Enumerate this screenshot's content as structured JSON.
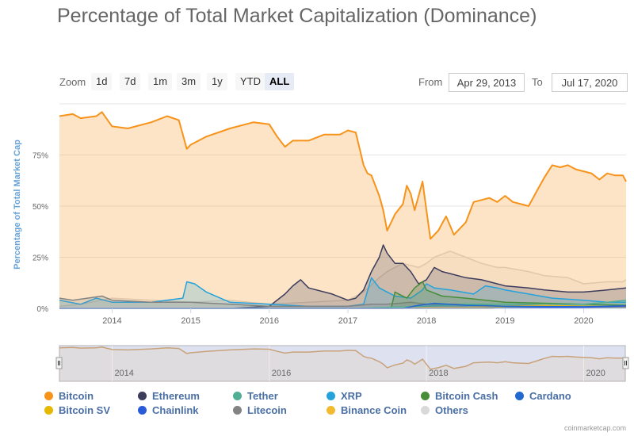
{
  "title": "Percentage of Total Market Capitalization (Dominance)",
  "zoom": {
    "label": "Zoom",
    "buttons": [
      "1d",
      "7d",
      "1m",
      "3m",
      "1y",
      "YTD",
      "ALL"
    ],
    "active": "ALL"
  },
  "range": {
    "from_label": "From",
    "from_value": "Apr 29, 2013",
    "to_label": "To",
    "to_value": "Jul 17, 2020"
  },
  "credits": "coinmarketcap.com",
  "chart_data": {
    "type": "area",
    "title": "Percentage of Total Market Capitalization (Dominance)",
    "ylabel": "Percentage of Total Market Cap",
    "xlabel": "",
    "ylim": [
      0,
      100
    ],
    "yticks": [
      0,
      25,
      50,
      75
    ],
    "ytick_labels": [
      "0%",
      "25%",
      "50%",
      "75%"
    ],
    "xlim": [
      2013.33,
      2020.54
    ],
    "xticks": [
      2014,
      2015,
      2016,
      2017,
      2018,
      2019,
      2020
    ],
    "xtick_labels": [
      "2014",
      "2015",
      "2016",
      "2017",
      "2018",
      "2019",
      "2020"
    ],
    "navigator_ticks": [
      2014,
      2016,
      2018,
      2020
    ],
    "navigator_tick_labels": [
      "2014",
      "2016",
      "2018",
      "2020"
    ],
    "legend_position": "bottom",
    "series": [
      {
        "name": "Bitcoin",
        "color": "#f7931a",
        "x": [
          2013.33,
          2013.5,
          2013.6,
          2013.8,
          2013.87,
          2014.0,
          2014.2,
          2014.5,
          2014.7,
          2014.85,
          2014.95,
          2015.0,
          2015.2,
          2015.5,
          2015.8,
          2016.0,
          2016.1,
          2016.2,
          2016.3,
          2016.5,
          2016.7,
          2016.9,
          2017.0,
          2017.1,
          2017.2,
          2017.25,
          2017.3,
          2017.4,
          2017.45,
          2017.5,
          2017.6,
          2017.7,
          2017.75,
          2017.8,
          2017.85,
          2017.9,
          2017.95,
          2018.0,
          2018.05,
          2018.15,
          2018.25,
          2018.35,
          2018.5,
          2018.6,
          2018.7,
          2018.8,
          2018.9,
          2019.0,
          2019.1,
          2019.2,
          2019.3,
          2019.4,
          2019.5,
          2019.6,
          2019.7,
          2019.8,
          2019.9,
          2020.0,
          2020.1,
          2020.2,
          2020.3,
          2020.4,
          2020.5,
          2020.54
        ],
        "values": [
          94,
          95,
          93,
          94,
          96,
          89,
          88,
          91,
          94,
          92,
          78,
          80,
          84,
          88,
          91,
          90,
          84,
          79,
          82,
          82,
          85,
          85,
          87,
          86,
          70,
          66,
          65,
          55,
          48,
          38,
          46,
          51,
          60,
          56,
          48,
          55,
          62,
          48,
          34,
          38,
          45,
          36,
          42,
          52,
          53,
          54,
          52,
          55,
          52,
          51,
          50,
          57,
          64,
          70,
          69,
          70,
          68,
          67,
          66,
          63,
          66,
          65,
          65,
          62
        ]
      },
      {
        "name": "Ethereum",
        "color": "#3c3c5d",
        "x": [
          2013.33,
          2015.5,
          2016.0,
          2016.2,
          2016.3,
          2016.4,
          2016.5,
          2016.8,
          2017.0,
          2017.1,
          2017.2,
          2017.3,
          2017.4,
          2017.45,
          2017.5,
          2017.6,
          2017.7,
          2017.8,
          2017.9,
          2018.0,
          2018.1,
          2018.2,
          2018.3,
          2018.5,
          2018.7,
          2018.9,
          2019.0,
          2019.3,
          2019.5,
          2019.8,
          2020.0,
          2020.3,
          2020.54
        ],
        "values": [
          0,
          0,
          1,
          7,
          11,
          14,
          10,
          7,
          4,
          5,
          9,
          18,
          25,
          31,
          27,
          22,
          22,
          18,
          12,
          14,
          20,
          18,
          17,
          15,
          14,
          12,
          11,
          10,
          9,
          8,
          8,
          9,
          10
        ]
      },
      {
        "name": "Tether",
        "color": "#50af95",
        "x": [
          2013.33,
          2017.0,
          2017.5,
          2018.0,
          2018.5,
          2019.0,
          2019.5,
          2020.0,
          2020.3,
          2020.54
        ],
        "values": [
          0,
          0,
          0.5,
          1,
          2,
          2,
          2,
          2,
          3,
          4
        ]
      },
      {
        "name": "XRP",
        "color": "#23a2dc",
        "x": [
          2013.33,
          2013.6,
          2013.8,
          2014.0,
          2014.5,
          2014.9,
          2014.95,
          2015.05,
          2015.2,
          2015.5,
          2016.0,
          2016.5,
          2017.0,
          2017.2,
          2017.3,
          2017.4,
          2017.5,
          2017.6,
          2017.8,
          2017.95,
          2018.0,
          2018.1,
          2018.3,
          2018.6,
          2018.75,
          2018.9,
          2019.0,
          2019.3,
          2019.6,
          2020.0,
          2020.3,
          2020.54
        ],
        "values": [
          4,
          2,
          5,
          3,
          3,
          5,
          13,
          12,
          8,
          3,
          2,
          1,
          1,
          2,
          15,
          10,
          8,
          6,
          5,
          9,
          12,
          10,
          9,
          7,
          11,
          10,
          9,
          7,
          5,
          4,
          3,
          3
        ]
      },
      {
        "name": "Bitcoin Cash",
        "color": "#478d3a",
        "x": [
          2013.33,
          2017.55,
          2017.6,
          2017.75,
          2017.85,
          2017.95,
          2018.0,
          2018.2,
          2018.5,
          2019.0,
          2020.0,
          2020.54
        ],
        "values": [
          0,
          0,
          8,
          5,
          10,
          13,
          9,
          6,
          5,
          3,
          2,
          1.5
        ]
      },
      {
        "name": "Cardano",
        "color": "#2168cf",
        "x": [
          2013.33,
          2017.7,
          2017.9,
          2018.1,
          2018.5,
          2019.0,
          2020.0,
          2020.54
        ],
        "values": [
          0,
          0,
          1.5,
          2.5,
          1.5,
          1,
          0.8,
          1.2
        ]
      },
      {
        "name": "Bitcoin SV",
        "color": "#e6b800",
        "x": [
          2013.33,
          2018.85,
          2019.0,
          2019.5,
          2020.0,
          2020.54
        ],
        "values": [
          0,
          0,
          1,
          1,
          1,
          1
        ]
      },
      {
        "name": "Chainlink",
        "color": "#2a5ada",
        "x": [
          2013.33,
          2017.8,
          2019.0,
          2019.6,
          2020.0,
          2020.54
        ],
        "values": [
          0,
          0,
          0.1,
          0.5,
          0.5,
          1.2
        ]
      },
      {
        "name": "Litecoin",
        "color": "#838383",
        "x": [
          2013.33,
          2013.5,
          2013.87,
          2014.0,
          2014.5,
          2015.0,
          2015.5,
          2016.0,
          2016.5,
          2017.0,
          2017.3,
          2017.5,
          2017.8,
          2018.0,
          2018.5,
          2019.0,
          2019.5,
          2020.0,
          2020.54
        ],
        "values": [
          5,
          4,
          6,
          4,
          3,
          3,
          2,
          1,
          1,
          1,
          2,
          2,
          3,
          2,
          2,
          1,
          2,
          1,
          1
        ]
      },
      {
        "name": "Binance Coin",
        "color": "#f3ba2f",
        "x": [
          2013.33,
          2017.6,
          2018.0,
          2018.5,
          2019.0,
          2019.5,
          2020.0,
          2020.54
        ],
        "values": [
          0,
          0,
          0.5,
          0.5,
          1,
          1.5,
          1,
          1
        ]
      },
      {
        "name": "Others",
        "color": "#d9d9d9",
        "x": [
          2013.33,
          2013.6,
          2014.0,
          2014.5,
          2015.0,
          2015.5,
          2016.0,
          2016.5,
          2017.0,
          2017.2,
          2017.4,
          2017.5,
          2017.7,
          2017.9,
          2018.0,
          2018.1,
          2018.3,
          2018.5,
          2018.7,
          2018.9,
          2019.0,
          2019.3,
          2019.5,
          2019.8,
          2020.0,
          2020.3,
          2020.5,
          2020.54
        ],
        "values": [
          1,
          2,
          5,
          4,
          3,
          4,
          2,
          3,
          4,
          8,
          15,
          18,
          22,
          20,
          22,
          25,
          28,
          25,
          22,
          20,
          20,
          18,
          16,
          15,
          12,
          13,
          13,
          14
        ]
      }
    ],
    "navigator": {
      "series": "Bitcoin",
      "range": [
        2013.33,
        2020.54
      ]
    }
  }
}
